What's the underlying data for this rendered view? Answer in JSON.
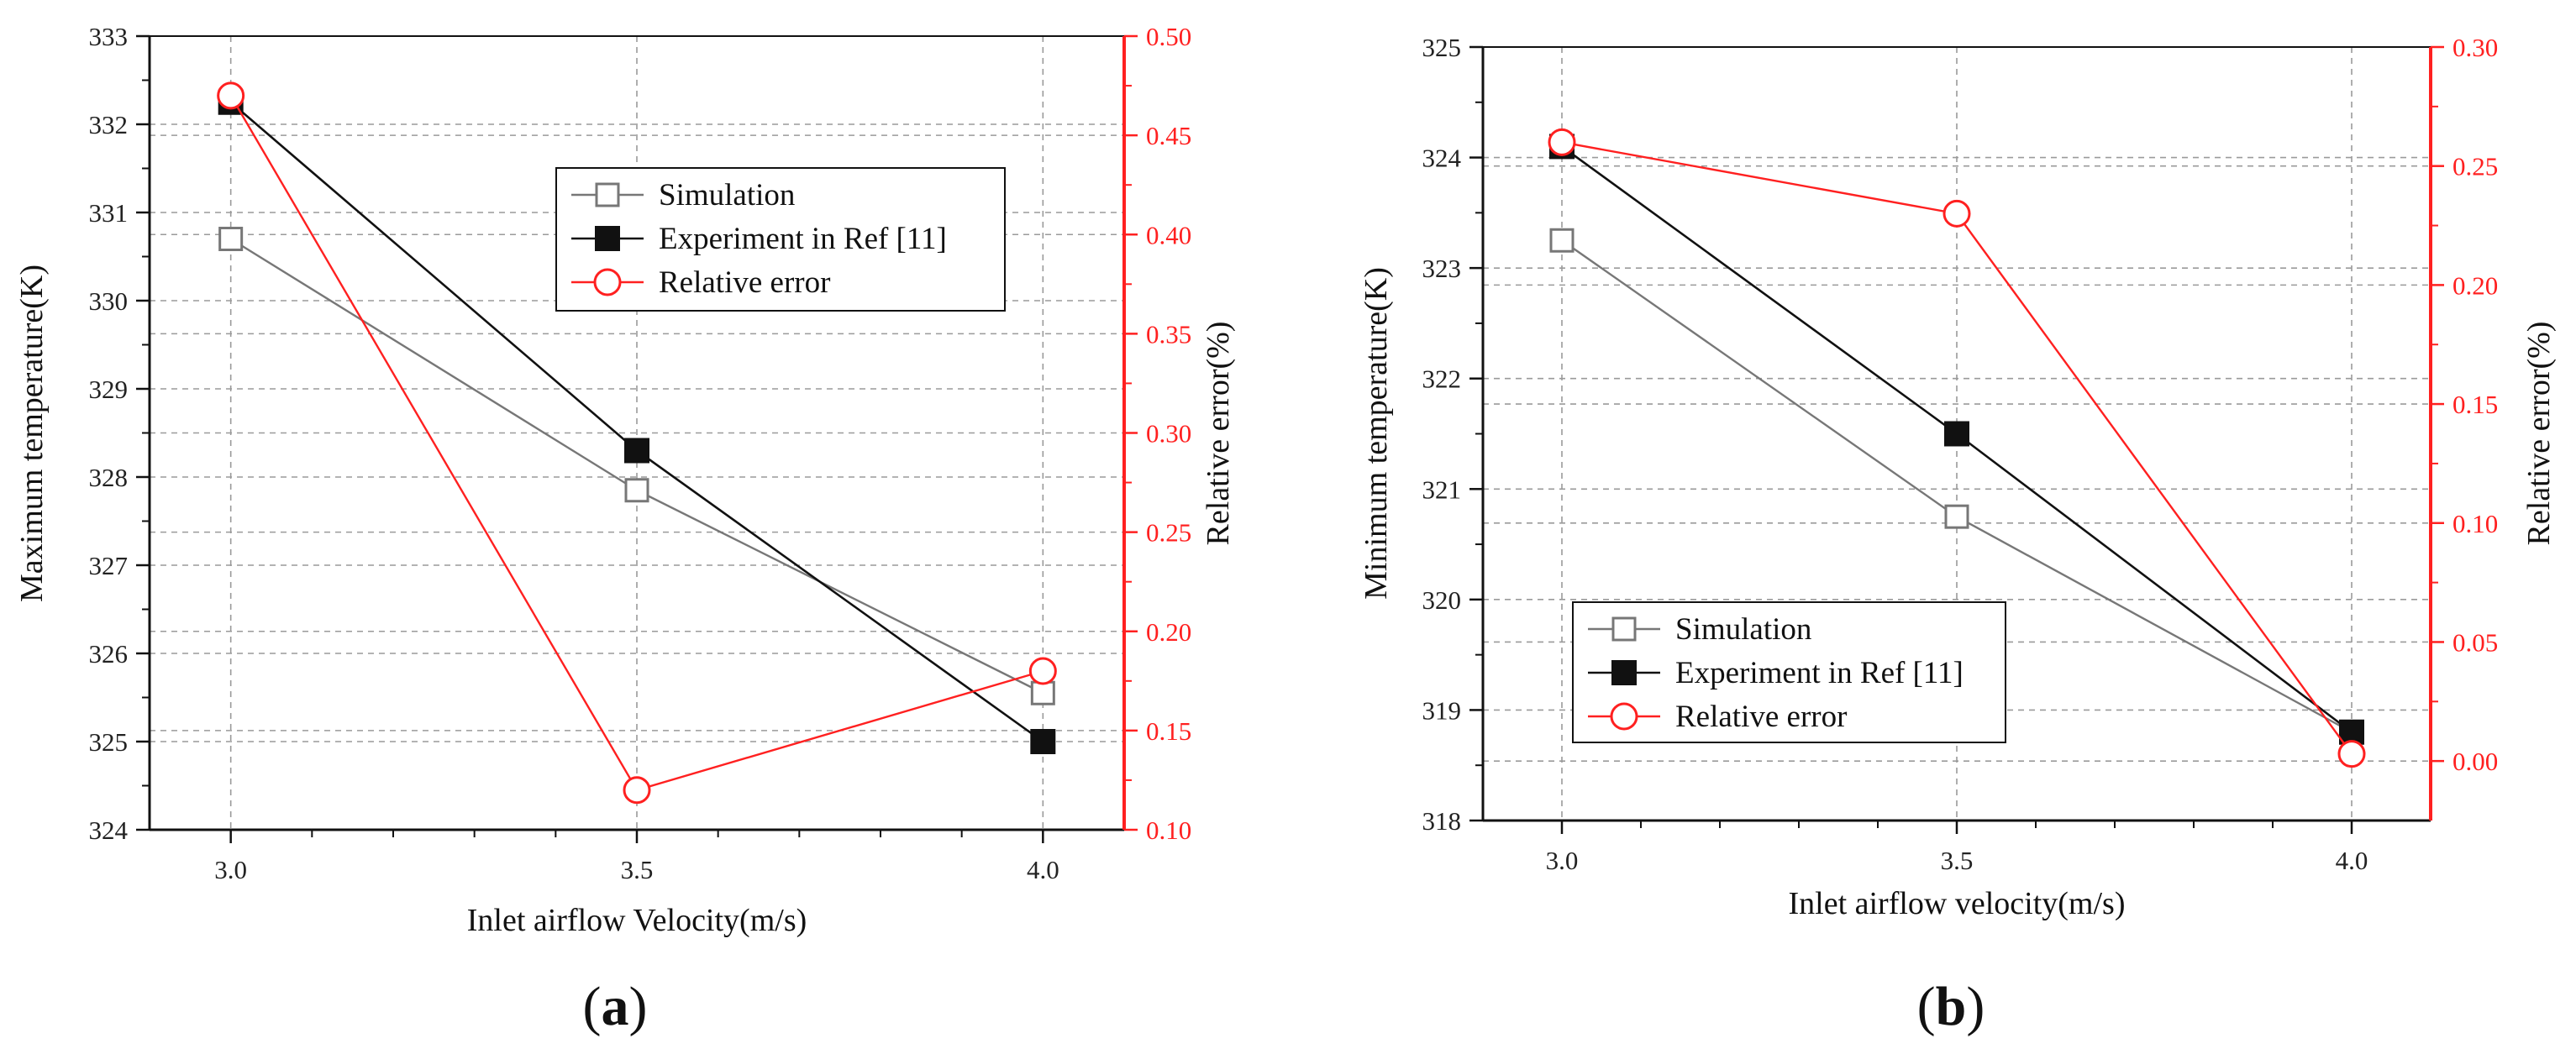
{
  "colors": {
    "simulation": "#777777",
    "experiment": "#111111",
    "relative_error": "#ff2020",
    "right_axis": "#ff2020",
    "grid": "#9a9a9a"
  },
  "panels": [
    {
      "letter_open": "(",
      "letter": "a",
      "letter_close": ")"
    },
    {
      "letter_open": "(",
      "letter": "b",
      "letter_close": ")"
    }
  ],
  "chart_data": [
    {
      "type": "line",
      "panel": "a",
      "xlabel": "Inlet airflow Velocity(m/s)",
      "ylabel": "Maximum temperature(K)",
      "y2label": "Relative error(%)",
      "x": [
        3.0,
        3.5,
        4.0
      ],
      "xticks": [
        "3.0",
        "3.5",
        "4.0"
      ],
      "xlim": [
        2.9,
        4.1
      ],
      "ylim": [
        324,
        333
      ],
      "yticks": [
        "324",
        "325",
        "326",
        "327",
        "328",
        "329",
        "330",
        "331",
        "332",
        "333"
      ],
      "y2lim": [
        0.1,
        0.5
      ],
      "y2ticks": [
        "0.10",
        "0.15",
        "0.20",
        "0.25",
        "0.30",
        "0.35",
        "0.40",
        "0.45",
        "0.50"
      ],
      "series": [
        {
          "name": "Simulation",
          "key": "simulation",
          "axis": "left",
          "marker": "open-square",
          "values": [
            330.7,
            327.85,
            325.55
          ]
        },
        {
          "name": "Experiment in Ref [11]",
          "key": "experiment",
          "axis": "left",
          "marker": "filled-square",
          "values": [
            332.25,
            328.3,
            325.0
          ]
        },
        {
          "name": "Relative error",
          "key": "relative_error",
          "axis": "right",
          "marker": "open-circle",
          "values": [
            0.47,
            0.12,
            0.18
          ]
        }
      ],
      "legend_position": "upper-center",
      "grid": true
    },
    {
      "type": "line",
      "panel": "b",
      "xlabel": "Inlet airflow velocity(m/s)",
      "ylabel": "Minimum temperature(K)",
      "y2label": "Relative error(%)",
      "x": [
        3.0,
        3.5,
        4.0
      ],
      "xticks": [
        "3.0",
        "3.5",
        "4.0"
      ],
      "xlim": [
        2.9,
        4.1
      ],
      "ylim": [
        318,
        325
      ],
      "yticks": [
        "318",
        "319",
        "320",
        "321",
        "322",
        "323",
        "324",
        "325"
      ],
      "y2lim": [
        -0.025,
        0.3
      ],
      "y2ticks": [
        "0.00",
        "0.05",
        "0.10",
        "0.15",
        "0.20",
        "0.25",
        "0.30"
      ],
      "series": [
        {
          "name": "Simulation",
          "key": "simulation",
          "axis": "left",
          "marker": "open-square",
          "values": [
            323.25,
            320.75,
            318.8
          ]
        },
        {
          "name": "Experiment in Ref [11]",
          "key": "experiment",
          "axis": "left",
          "marker": "filled-square",
          "values": [
            324.1,
            321.5,
            318.8
          ]
        },
        {
          "name": "Relative error",
          "key": "relative_error",
          "axis": "right",
          "marker": "open-circle",
          "values": [
            0.26,
            0.23,
            0.003
          ]
        }
      ],
      "legend_position": "lower-left",
      "grid": true
    }
  ]
}
